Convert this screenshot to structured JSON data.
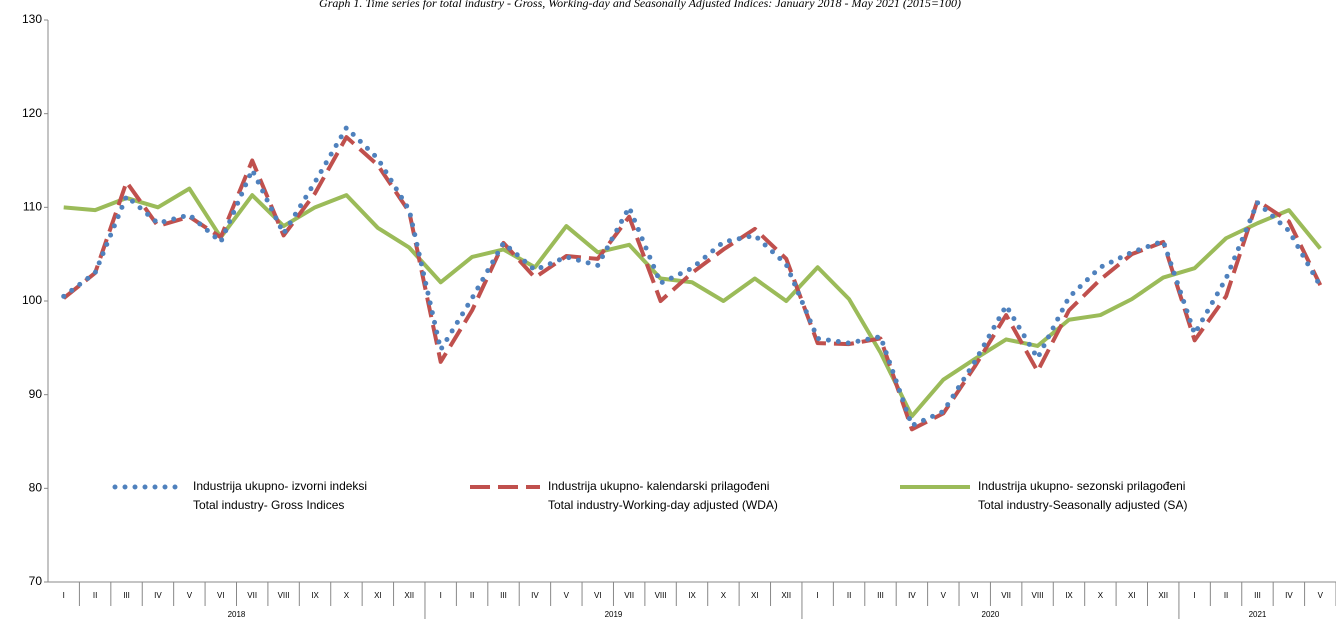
{
  "chart_data": {
    "type": "line",
    "title": "Graph 1. Time series for total industry - Gross, Working-day and Seasonally Adjusted Indices: January 2018 - May 2021 (2015=100)",
    "categories": [
      "I",
      "II",
      "III",
      "IV",
      "V",
      "VI",
      "VII",
      "VIII",
      "IX",
      "X",
      "XI",
      "XII",
      "I",
      "II",
      "III",
      "IV",
      "V",
      "VI",
      "VII",
      "VIII",
      "IX",
      "X",
      "XI",
      "XII",
      "I",
      "II",
      "III",
      "IV",
      "V",
      "VI",
      "VII",
      "VIII",
      "IX",
      "X",
      "XI",
      "XII",
      "I",
      "II",
      "III",
      "IV",
      "V"
    ],
    "years": [
      "2018",
      "2019",
      "2020",
      "2021"
    ],
    "ylim": [
      70,
      130
    ],
    "yticks": [
      70,
      80,
      90,
      100,
      110,
      120,
      130
    ],
    "grid": false,
    "series": [
      {
        "name": "Industrija ukupno- izvorni indeksi",
        "name_en": "Total industry- Gross Indices",
        "color": "#4f81bd",
        "style": "dotted",
        "values": [
          100.5,
          103.0,
          111.2,
          108.3,
          109.2,
          106.3,
          114.0,
          107.2,
          112.7,
          118.5,
          115.2,
          109.7,
          94.8,
          100.3,
          106.2,
          103.3,
          104.7,
          103.8,
          110.0,
          101.9,
          103.5,
          106.3,
          107.0,
          103.9,
          96.0,
          95.5,
          96.2,
          86.7,
          88.2,
          93.5,
          99.5,
          93.9,
          100.4,
          103.6,
          105.2,
          106.4,
          96.5,
          102.4,
          110.5,
          107.5,
          101.6
        ]
      },
      {
        "name": "Industrija ukupno- kalendarski prilagođeni",
        "name_en": "Total industry-Working-day adjusted (WDA)",
        "color": "#c0504d",
        "style": "dashed",
        "values": [
          100.3,
          103.0,
          112.7,
          108.0,
          109.0,
          106.8,
          115.0,
          107.0,
          111.5,
          117.5,
          114.5,
          109.5,
          93.5,
          99.0,
          106.2,
          102.5,
          104.8,
          104.5,
          109.0,
          100.0,
          103.0,
          105.5,
          107.7,
          104.5,
          95.5,
          95.4,
          96.0,
          86.3,
          88.0,
          93.0,
          98.5,
          92.5,
          99.0,
          102.3,
          105.0,
          106.3,
          95.8,
          100.5,
          110.7,
          108.5,
          101.7
        ]
      },
      {
        "name": "Industrija ukupno- sezonski prilagođeni",
        "name_en": "Total industry-Seasonally adjusted (SA)",
        "color": "#9bbb59",
        "style": "solid",
        "values": [
          110.0,
          109.7,
          111.0,
          110.0,
          112.0,
          106.8,
          111.3,
          108.0,
          110.0,
          111.3,
          107.8,
          105.7,
          102.0,
          104.7,
          105.5,
          103.6,
          108.0,
          105.2,
          106.0,
          102.4,
          102.0,
          100.0,
          102.4,
          100.0,
          103.6,
          100.2,
          94.5,
          87.7,
          91.6,
          93.8,
          95.9,
          95.2,
          98.0,
          98.5,
          100.2,
          102.5,
          103.5,
          106.7,
          108.3,
          109.7,
          105.6
        ]
      }
    ]
  }
}
